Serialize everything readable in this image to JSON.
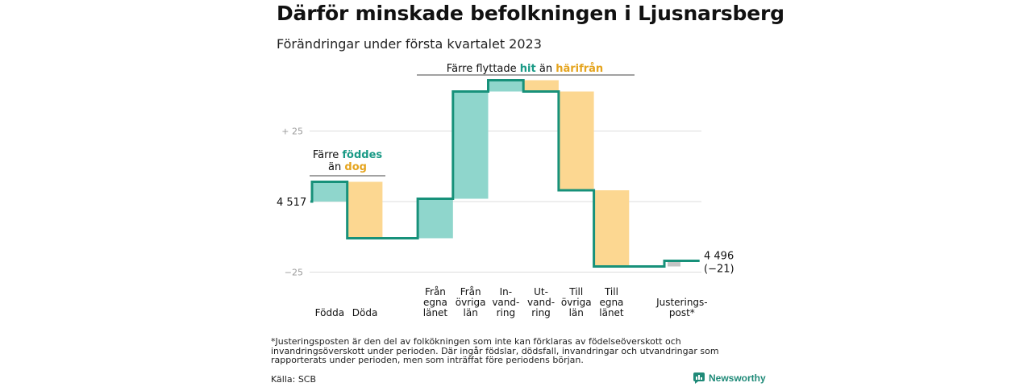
{
  "title": "Därför minskade befolkningen i Ljusnarsberg",
  "subtitle": "Förändringar under första kvartalet 2023",
  "colors": {
    "increase": "#8fd6cc",
    "decrease": "#fcd791",
    "adjustment": "#c4c4c4",
    "line": "#17917a",
    "grid": "#dddddd",
    "axis_text": "#9a9a9a",
    "teal_text": "#1a9a86",
    "gold_text": "#e5a41e"
  },
  "chart_data": {
    "type": "waterfall",
    "title": "Därför minskade befolkningen i Ljusnarsberg",
    "subtitle": "Förändringar under första kvartalet 2023",
    "start": 4517,
    "end": 4496,
    "end_label": "4 496",
    "end_change": "(−21)",
    "start_label": "4 517",
    "y_ticks": [
      {
        "value": 25,
        "label": "+ 25"
      },
      {
        "value": -25,
        "label": "−25"
      }
    ],
    "y_range_relative": [
      -27,
      37
    ],
    "steps": [
      {
        "label": [
          "Födda"
        ],
        "delta": 7,
        "kind": "increase"
      },
      {
        "label": [
          "Döda"
        ],
        "delta": -20,
        "kind": "decrease"
      },
      {
        "label": [],
        "delta": 0,
        "kind": "gap"
      },
      {
        "label": [
          "Från",
          "egna",
          "länet"
        ],
        "delta": 14,
        "kind": "increase"
      },
      {
        "label": [
          "Från",
          "övriga",
          "län"
        ],
        "delta": 38,
        "kind": "increase"
      },
      {
        "label": [
          "In-",
          "vand-",
          "ring"
        ],
        "delta": 4,
        "kind": "increase"
      },
      {
        "label": [
          "Ut-",
          "vand-",
          "ring"
        ],
        "delta": -4,
        "kind": "decrease"
      },
      {
        "label": [
          "Till",
          "övriga",
          "län"
        ],
        "delta": -35,
        "kind": "decrease"
      },
      {
        "label": [
          "Till",
          "egna",
          "länet"
        ],
        "delta": -27,
        "kind": "decrease"
      },
      {
        "label": [],
        "delta": 0,
        "kind": "gap"
      },
      {
        "label": [
          "Justerings-",
          "post*"
        ],
        "delta": 2,
        "kind": "adjustment"
      }
    ],
    "annotations": [
      {
        "lines": [
          [
            {
              "t": "Färre ",
              "c": "dark"
            },
            {
              "t": "föddes",
              "c": "teal"
            }
          ],
          [
            {
              "t": "än ",
              "c": "dark"
            },
            {
              "t": "dog",
              "c": "gold"
            }
          ]
        ]
      },
      {
        "lines": [
          [
            {
              "t": "Färre flyttade ",
              "c": "dark"
            },
            {
              "t": "hit",
              "c": "teal"
            },
            {
              "t": " än ",
              "c": "dark"
            },
            {
              "t": "härifrån",
              "c": "gold"
            }
          ]
        ]
      }
    ]
  },
  "footnote": "*Justeringsposten är den del av folkökningen som inte kan förklaras av födelseöverskott och invandringsöverskott under perioden. Där ingår födslar, dödsfall, invandringar och utvandringar som rapporterats under perioden, men som inträffat före periodens början.",
  "source": "Källa: SCB",
  "brand": {
    "name": "Newsworthy",
    "icon": "bar-chart-speech-icon"
  }
}
